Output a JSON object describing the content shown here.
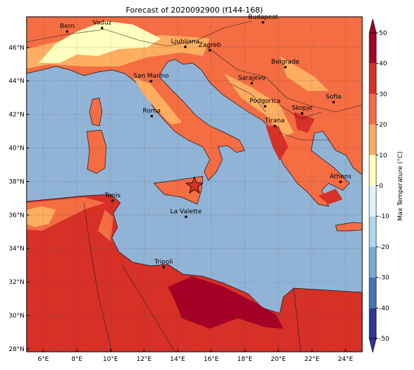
{
  "title": "Forecast of 2020092900 (f144-168)",
  "map": {
    "xlim": [
      5,
      25
    ],
    "ylim": [
      27.83,
      47.83
    ],
    "xticks": [
      {
        "value": 6,
        "label": "6°E"
      },
      {
        "value": 8,
        "label": "8°E"
      },
      {
        "value": 10,
        "label": "10°E"
      },
      {
        "value": 12,
        "label": "12°E"
      },
      {
        "value": 14,
        "label": "14°E"
      },
      {
        "value": 16,
        "label": "16°E"
      },
      {
        "value": 18,
        "label": "18°E"
      },
      {
        "value": 20,
        "label": "20°E"
      },
      {
        "value": 22,
        "label": "22°E"
      },
      {
        "value": 24,
        "label": "24°E"
      }
    ],
    "yticks": [
      {
        "value": 28,
        "label": "28°N"
      },
      {
        "value": 30,
        "label": "30°N"
      },
      {
        "value": 32,
        "label": "32°N"
      },
      {
        "value": 34,
        "label": "34°N"
      },
      {
        "value": 36,
        "label": "36°N"
      },
      {
        "value": 38,
        "label": "38°N"
      },
      {
        "value": 40,
        "label": "40°N"
      },
      {
        "value": 42,
        "label": "42°N"
      },
      {
        "value": 44,
        "label": "44°N"
      },
      {
        "value": 46,
        "label": "46°N"
      }
    ],
    "grid": true,
    "cities": [
      "Bern",
      "Vaduz",
      "Budapest",
      "Ljubljana",
      "Zagreb",
      "Belgrade",
      "San Marino",
      "Sarajevo",
      "Sofia",
      "Podgorica",
      "Skopje",
      "Roma",
      "Tirana",
      "Athens",
      "Tunis",
      "La Valette",
      "Tripoli"
    ]
  },
  "colorbar": {
    "label": "Max Temperature (°C)",
    "ticks": [
      -50,
      -40,
      -30,
      -20,
      -10,
      0,
      10,
      20,
      30,
      40,
      50
    ],
    "colors": [
      "#313695",
      "#4575b4",
      "#74add1",
      "#abd9e9",
      "#e0f3f8",
      "#ffffbf",
      "#fdae61",
      "#f46d43",
      "#d73027",
      "#a50026"
    ]
  }
}
